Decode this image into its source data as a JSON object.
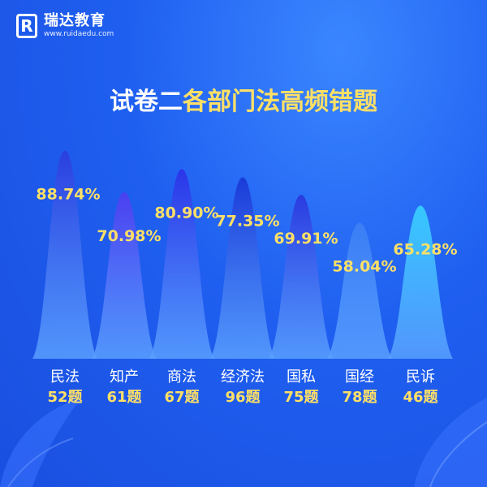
{
  "logo": {
    "name": "瑞达教育",
    "url": "www.ruidaedu.com",
    "mark": "R"
  },
  "title": {
    "white": "试卷二",
    "yellow": "各部门法高频错题"
  },
  "colors": {
    "background": "#1f5ff0",
    "value_label": "#ffe066",
    "axis_text": "#ffffff"
  },
  "chart_data": {
    "type": "bar",
    "title": "试卷二各部门法高频错题",
    "categories": [
      "民法",
      "知产",
      "商法",
      "经济法",
      "国私",
      "国经",
      "民诉"
    ],
    "counts": [
      "52题",
      "61题",
      "67题",
      "96题",
      "75题",
      "78题",
      "46题"
    ],
    "values": [
      88.74,
      70.98,
      80.9,
      77.35,
      69.91,
      58.04,
      65.28
    ],
    "value_labels": [
      "88.74%",
      "70.98%",
      "80.90%",
      "77.35%",
      "69.91%",
      "58.04%",
      "65.28%"
    ],
    "ylim": [
      0,
      100
    ],
    "grid": false,
    "legend": "none",
    "bar_colors": [
      "#2a3fe0",
      "#4a3ff0",
      "#2a35e8",
      "#1a3ad8",
      "#2a3ae0",
      "#3a7df5",
      "#36c8ff"
    ]
  }
}
